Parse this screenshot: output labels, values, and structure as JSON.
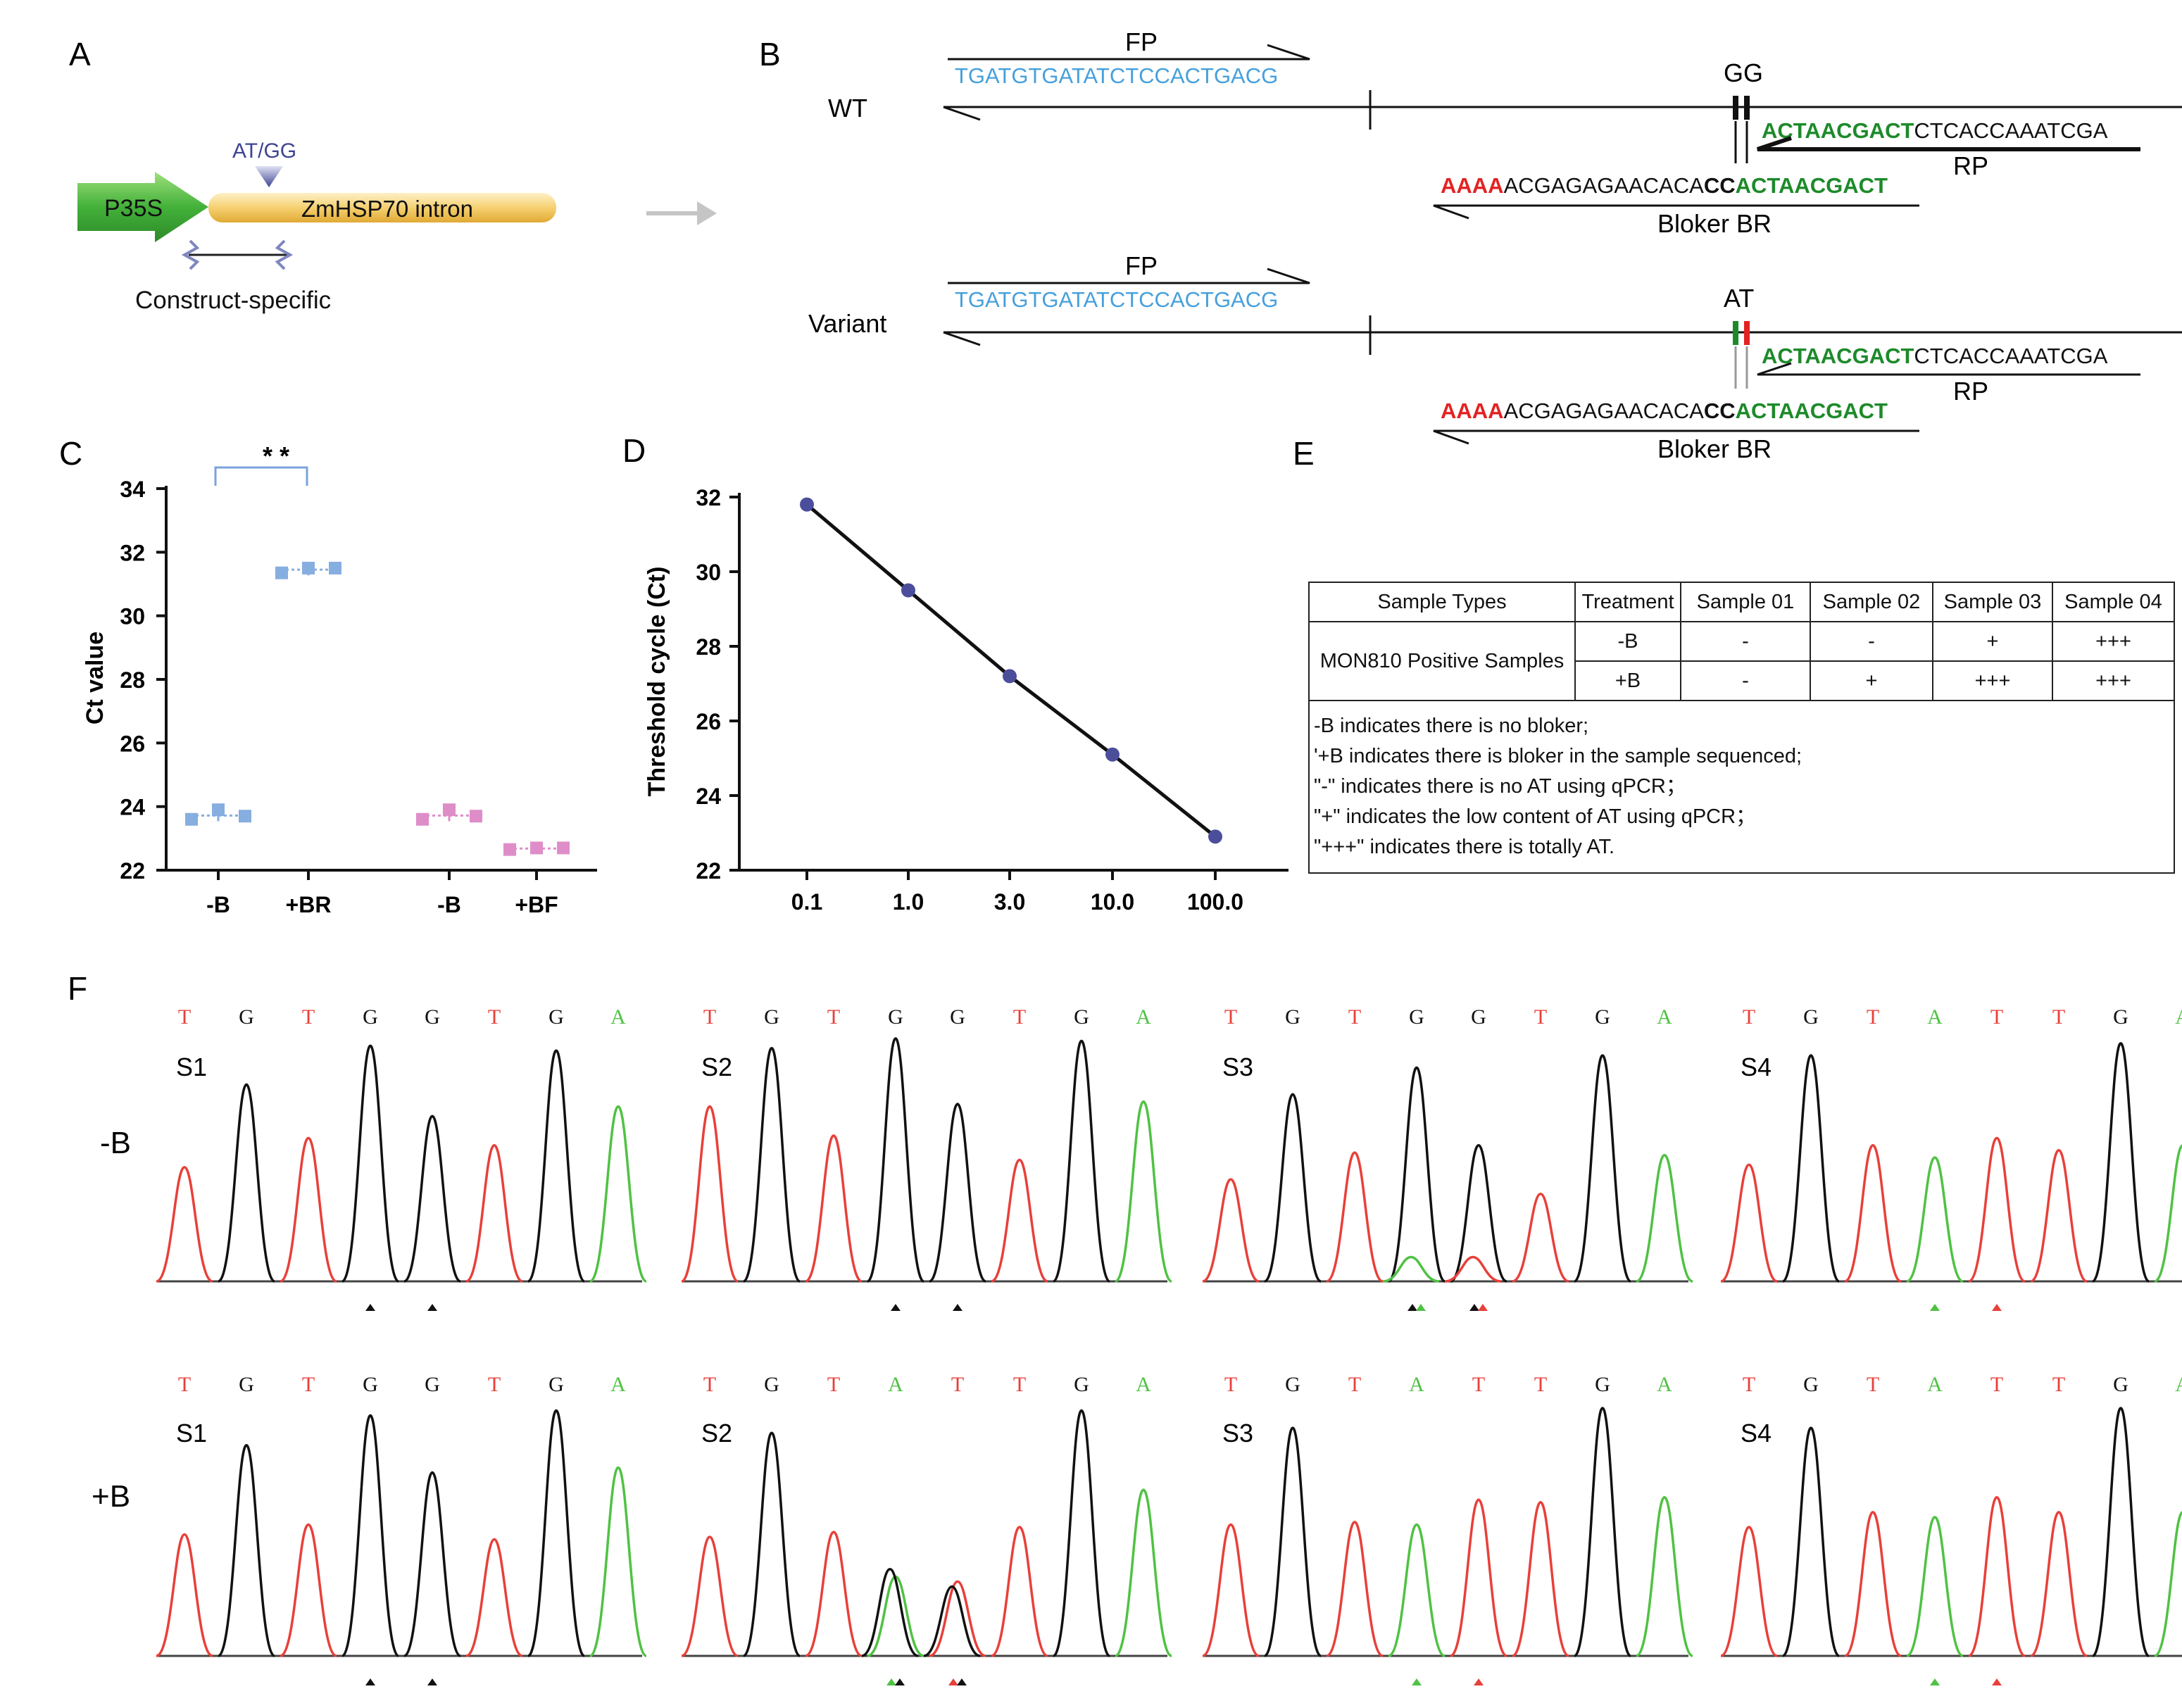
{
  "panels": {
    "A": "A",
    "B": "B",
    "C": "C",
    "D": "D",
    "E": "E",
    "F": "F"
  },
  "panelA": {
    "promoter": "P35S",
    "intron": "ZmHSP70 intron",
    "site": "AT/GG",
    "primer_label": "Construct-specific"
  },
  "panelB": {
    "wt": {
      "label": "WT",
      "fp": "FP",
      "fp_seq": "TGATGTGATATCTCCACTGACG",
      "snp": "GG",
      "rp_seq_green": "ACTAACGACT",
      "rp_seq_black": "CTCACCAAATCGA",
      "rp": "RP",
      "blocker_red": "AAAA",
      "blocker_mid": "ACGAGAGAACACA",
      "blocker_bold": "CC",
      "blocker_green": "ACTAACGACT",
      "blocker_label": "Bloker BR"
    },
    "variant": {
      "label": "Variant",
      "fp": "FP",
      "fp_seq": "TGATGTGATATCTCCACTGACG",
      "snp": "AT",
      "rp_seq_green": "ACTAACGACT",
      "rp_seq_black": "CTCACCAAATCGA",
      "rp": "RP",
      "blocker_red": "AAAA",
      "blocker_mid": "ACGAGAGAACACA",
      "blocker_bold": "CC",
      "blocker_green": "ACTAACGACT",
      "blocker_label": "Bloker BR"
    }
  },
  "chart_data": [
    {
      "id": "C",
      "type": "scatter",
      "ylabel": "Ct value",
      "ylim": [
        22,
        34
      ],
      "yticks": [
        22,
        24,
        26,
        28,
        30,
        32,
        34
      ],
      "categories": [
        "-B",
        "+BR",
        "-B",
        "+BF"
      ],
      "colors": [
        "#86aee0",
        "#86aee0",
        "#df8dc8",
        "#df8dc8"
      ],
      "points": [
        [
          23.6,
          23.9,
          23.7
        ],
        [
          31.35,
          31.5,
          31.5
        ],
        [
          23.6,
          23.9,
          23.7
        ],
        [
          22.65,
          22.7,
          22.7
        ]
      ],
      "means": [
        23.72,
        31.45,
        23.72,
        22.68
      ],
      "significance": "* *"
    },
    {
      "id": "D",
      "type": "line",
      "ylabel": "Threshold cycle (Ct)",
      "ylim": [
        22,
        32
      ],
      "yticks": [
        22,
        24,
        26,
        28,
        30,
        32
      ],
      "x": [
        "0.1",
        "1.0",
        "3.0",
        "10.0",
        "100.0"
      ],
      "y": [
        31.8,
        29.5,
        27.2,
        25.1,
        22.9
      ],
      "color": "#4b4e9b"
    },
    {
      "id": "E",
      "type": "table",
      "headers": [
        "Sample Types",
        "Treatment",
        "Sample 01",
        "Sample 02",
        "Sample 03",
        "Sample 04"
      ],
      "group": "MON810 Positive Samples",
      "rows": [
        {
          "treatment": "-B",
          "values": [
            "-",
            "-",
            "+",
            "+++"
          ]
        },
        {
          "treatment": "+B",
          "values": [
            "-",
            "+",
            "+++",
            "+++"
          ]
        }
      ],
      "notes": [
        "-B indicates there is no bloker;",
        "'+B indicates there is  bloker in the sample sequenced;",
        "\"-\" indicates there is no AT using qPCR；",
        "\"+\" indicates the low content  of AT using qPCR；",
        "\"+++\" indicates there is totally AT."
      ]
    },
    {
      "id": "F",
      "type": "chromatogram",
      "row_labels": [
        "-B",
        "+B"
      ],
      "base_colors": {
        "T": "#e8403a",
        "G": "#111111",
        "A": "#4fc243"
      },
      "traces": [
        {
          "row": 0,
          "sample": "S1",
          "bases": [
            "T",
            "G",
            "T",
            "G",
            "G",
            "T",
            "G",
            "A"
          ],
          "heights": [
            0.47,
            0.81,
            0.59,
            0.97,
            0.68,
            0.56,
            0.95,
            0.72
          ],
          "secondary": [],
          "markers": [
            {
              "pos": 3,
              "colors": [
                "#111111"
              ]
            },
            {
              "pos": 4,
              "colors": [
                "#111111"
              ]
            }
          ]
        },
        {
          "row": 0,
          "sample": "S2",
          "bases": [
            "T",
            "G",
            "T",
            "G",
            "G",
            "T",
            "G",
            "A"
          ],
          "heights": [
            0.72,
            0.96,
            0.6,
            1.0,
            0.73,
            0.5,
            0.99,
            0.74
          ],
          "secondary": [],
          "markers": [
            {
              "pos": 3,
              "colors": [
                "#111111"
              ]
            },
            {
              "pos": 4,
              "colors": [
                "#111111"
              ]
            }
          ]
        },
        {
          "row": 0,
          "sample": "S3",
          "bases": [
            "T",
            "G",
            "T",
            "G",
            "G",
            "T",
            "G",
            "A"
          ],
          "heights": [
            0.42,
            0.77,
            0.53,
            0.88,
            0.56,
            0.36,
            0.93,
            0.52
          ],
          "secondary": [
            [
              3,
              "A",
              0.1
            ],
            [
              4,
              "T",
              0.1
            ]
          ],
          "markers": [
            {
              "pos": 3,
              "colors": [
                "#111111",
                "#4fc243"
              ]
            },
            {
              "pos": 4,
              "colors": [
                "#111111",
                "#e8403a"
              ]
            }
          ]
        },
        {
          "row": 0,
          "sample": "S4",
          "bases": [
            "T",
            "G",
            "T",
            "A",
            "T",
            "T",
            "G",
            "A"
          ],
          "heights": [
            0.48,
            0.93,
            0.56,
            0.51,
            0.59,
            0.54,
            0.98,
            0.56
          ],
          "secondary": [],
          "markers": [
            {
              "pos": 3,
              "colors": [
                "#4fc243"
              ]
            },
            {
              "pos": 4,
              "colors": [
                "#e8403a"
              ]
            }
          ]
        },
        {
          "row": 1,
          "sample": "S1",
          "bases": [
            "T",
            "G",
            "T",
            "G",
            "G",
            "T",
            "G",
            "A"
          ],
          "heights": [
            0.49,
            0.85,
            0.53,
            0.97,
            0.74,
            0.47,
            0.99,
            0.76
          ],
          "secondary": [],
          "markers": [
            {
              "pos": 3,
              "colors": [
                "#111111"
              ]
            },
            {
              "pos": 4,
              "colors": [
                "#111111"
              ]
            }
          ]
        },
        {
          "row": 1,
          "sample": "S2",
          "bases": [
            "T",
            "G",
            "T",
            "A",
            "T",
            "T",
            "G",
            "A"
          ],
          "heights": [
            0.48,
            0.9,
            0.5,
            0.32,
            0.3,
            0.52,
            0.99,
            0.67
          ],
          "secondary": [
            [
              3,
              "G",
              0.35
            ],
            [
              4,
              "G",
              0.28
            ]
          ],
          "markers": [
            {
              "pos": 3,
              "colors": [
                "#4fc243",
                "#111111"
              ]
            },
            {
              "pos": 4,
              "colors": [
                "#e8403a",
                "#111111"
              ]
            }
          ]
        },
        {
          "row": 1,
          "sample": "S3",
          "bases": [
            "T",
            "G",
            "T",
            "A",
            "T",
            "T",
            "G",
            "A"
          ],
          "heights": [
            0.53,
            0.92,
            0.54,
            0.53,
            0.63,
            0.62,
            1.0,
            0.64
          ],
          "secondary": [],
          "markers": [
            {
              "pos": 3,
              "colors": [
                "#4fc243"
              ]
            },
            {
              "pos": 4,
              "colors": [
                "#e8403a"
              ]
            }
          ]
        },
        {
          "row": 1,
          "sample": "S4",
          "bases": [
            "T",
            "G",
            "T",
            "A",
            "T",
            "T",
            "G",
            "A"
          ],
          "heights": [
            0.52,
            0.92,
            0.58,
            0.56,
            0.64,
            0.58,
            1.0,
            0.58
          ],
          "secondary": [],
          "markers": [
            {
              "pos": 3,
              "colors": [
                "#4fc243"
              ]
            },
            {
              "pos": 4,
              "colors": [
                "#e8403a"
              ]
            }
          ]
        }
      ]
    }
  ]
}
